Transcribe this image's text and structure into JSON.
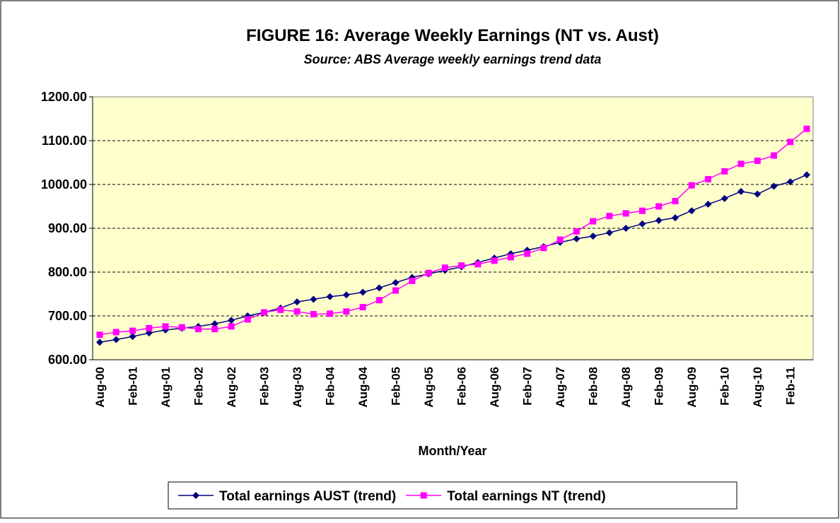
{
  "chart_data": {
    "type": "line",
    "title": "FIGURE 16: Average Weekly Earnings (NT vs. Aust)",
    "subtitle": "Source: ABS Average weekly earnings trend data",
    "x_label": "Month/Year",
    "categories": [
      "Aug-00",
      null,
      "Feb-01",
      null,
      "Aug-01",
      null,
      "Feb-02",
      null,
      "Aug-02",
      null,
      "Feb-03",
      null,
      "Aug-03",
      null,
      "Feb-04",
      null,
      "Aug-04",
      null,
      "Feb-05",
      null,
      "Aug-05",
      null,
      "Feb-06",
      null,
      "Aug-06",
      null,
      "Feb-07",
      null,
      "Aug-07",
      null,
      "Feb-08",
      null,
      "Aug-08",
      null,
      "Feb-09",
      null,
      "Aug-09",
      null,
      "Feb-10",
      null,
      "Aug-10",
      null,
      "Feb-11",
      null
    ],
    "series": [
      {
        "name": "Total earnings AUST (trend)",
        "color": "#000080",
        "marker": "diamond",
        "values": [
          640,
          646,
          653,
          661,
          668,
          672,
          676,
          682,
          690,
          700,
          708,
          718,
          732,
          738,
          744,
          748,
          754,
          764,
          776,
          788,
          796,
          804,
          812,
          822,
          832,
          842,
          850,
          858,
          868,
          876,
          882,
          890,
          900,
          910,
          918,
          924,
          940,
          955,
          968,
          984,
          978,
          996,
          1006,
          1022
        ]
      },
      {
        "name": "Total earnings NT (trend)",
        "color": "#ff00ff",
        "marker": "square",
        "values": [
          657,
          663,
          666,
          672,
          676,
          674,
          670,
          670,
          676,
          692,
          708,
          714,
          710,
          704,
          705,
          710,
          720,
          736,
          758,
          780,
          798,
          810,
          815,
          818,
          826,
          834,
          842,
          855,
          874,
          893,
          916,
          928,
          934,
          940,
          950,
          962,
          998,
          1012,
          1030,
          1047,
          1054,
          1066,
          1097,
          1127
        ]
      }
    ],
    "ylim": [
      600,
      1200
    ],
    "yticks": [
      {
        "value": 600,
        "label": "600.00"
      },
      {
        "value": 700,
        "label": "700.00"
      },
      {
        "value": 800,
        "label": "800.00"
      },
      {
        "value": 900,
        "label": "900.00"
      },
      {
        "value": 1000,
        "label": "1000.00"
      },
      {
        "value": 1100,
        "label": "1100.00"
      },
      {
        "value": 1200,
        "label": "1200.00"
      }
    ],
    "grid": true,
    "legend": "bottom",
    "plot_background": "#ffffcc"
  }
}
